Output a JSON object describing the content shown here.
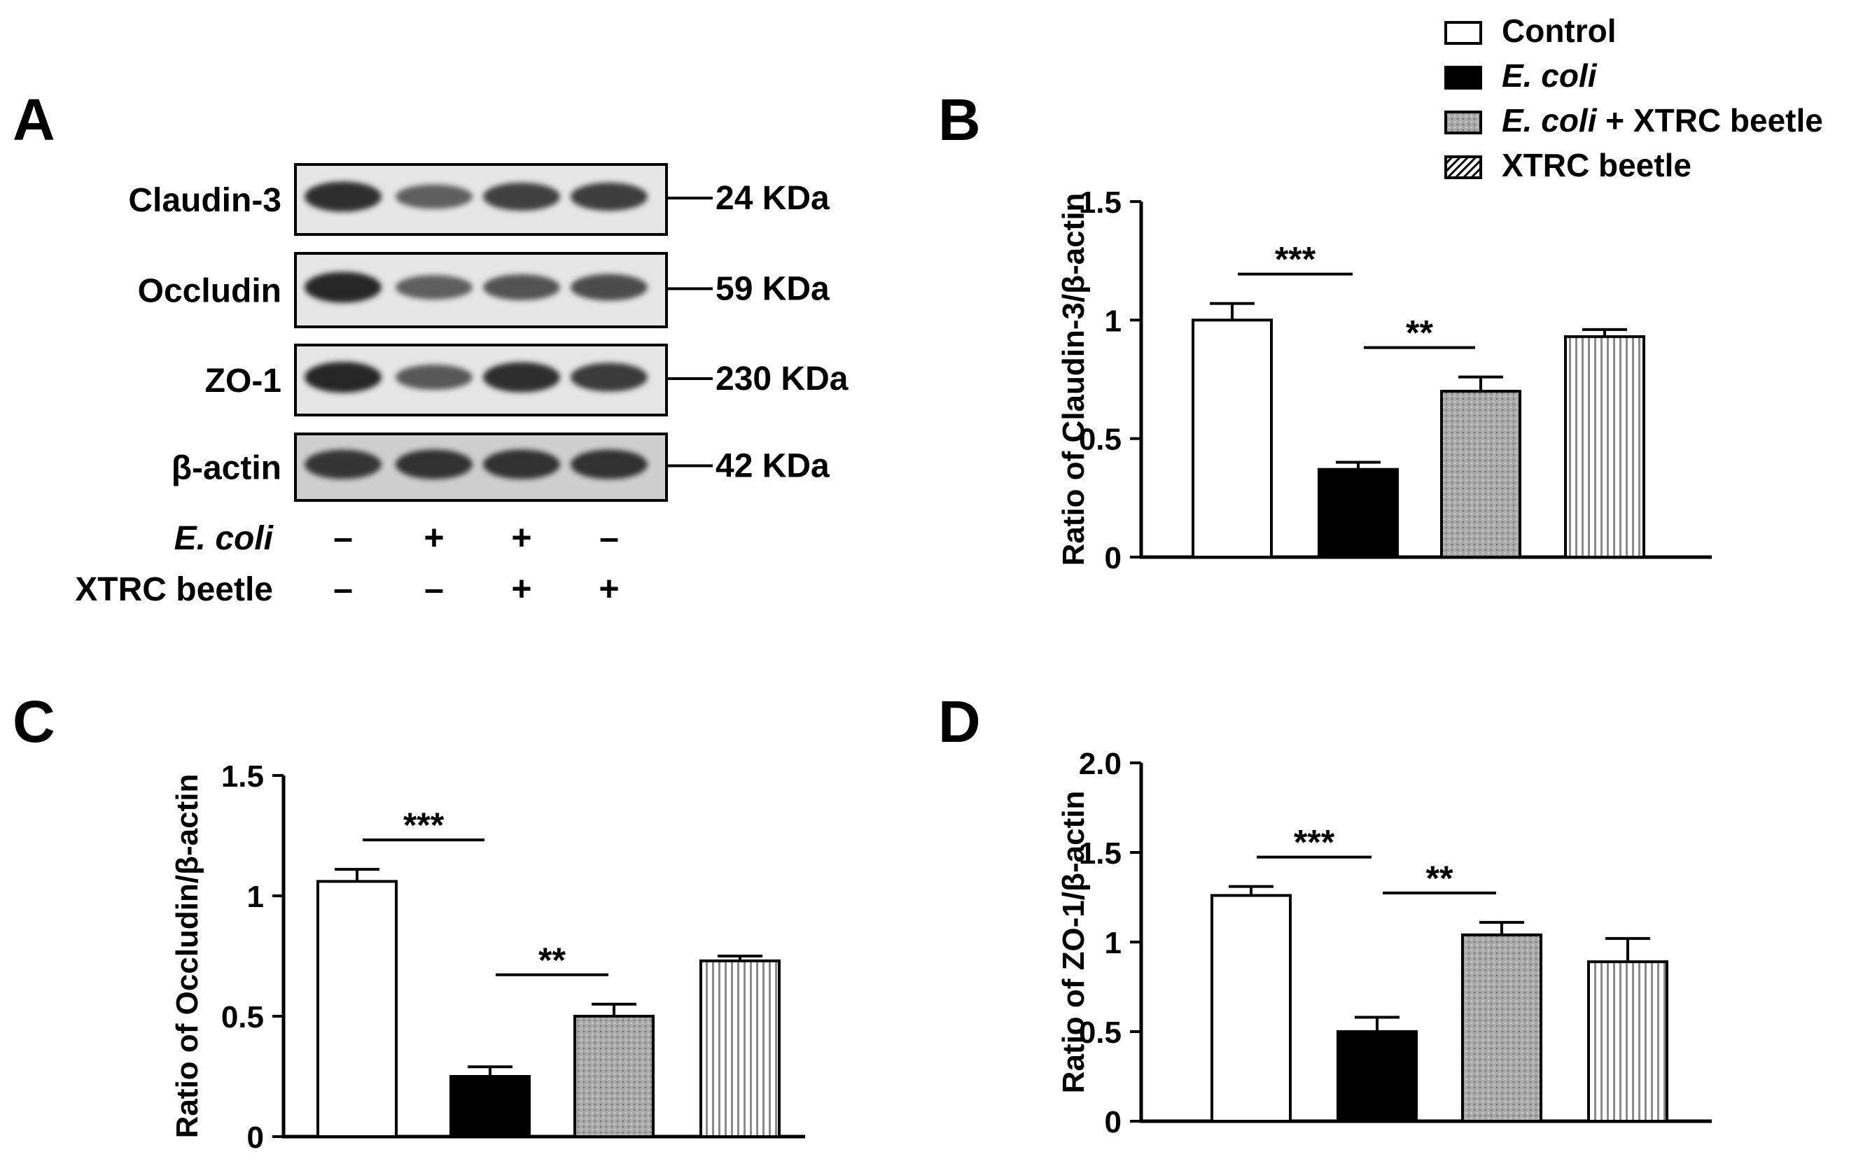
{
  "panel_labels": {
    "a": "A",
    "b": "B",
    "c": "C",
    "d": "D"
  },
  "legend": {
    "items": [
      {
        "label_main": "Control",
        "label_suffix": "",
        "italic": false,
        "pattern": "empty"
      },
      {
        "label_main": "E. coli",
        "label_suffix": "",
        "italic": true,
        "pattern": "solid"
      },
      {
        "label_main": "E. coli",
        "label_suffix": " + XTRC beetle",
        "italic": true,
        "pattern": "dots"
      },
      {
        "label_main": "XTRC beetle",
        "label_suffix": "",
        "italic": false,
        "pattern": "stripes"
      }
    ]
  },
  "blot": {
    "proteins": [
      {
        "name": "Claudin-3",
        "size": "24 KDa"
      },
      {
        "name": "Occludin",
        "size": "59 KDa"
      },
      {
        "name": "ZO-1",
        "size": "230 KDa"
      },
      {
        "name": "β-actin",
        "size": "42 KDa"
      }
    ],
    "band_intensity": [
      [
        0.95,
        0.55,
        0.8,
        0.82
      ],
      [
        1.0,
        0.55,
        0.65,
        0.7
      ],
      [
        1.0,
        0.6,
        0.95,
        0.85
      ],
      [
        0.9,
        0.92,
        0.92,
        0.92
      ]
    ],
    "treatments": [
      {
        "label": "E. coli",
        "italic": true,
        "signs": [
          "–",
          "+",
          "+",
          "–"
        ]
      },
      {
        "label": "XTRC beetle",
        "italic": false,
        "signs": [
          "–",
          "–",
          "+",
          "+"
        ]
      }
    ]
  },
  "colors": {
    "control": "#ffffff",
    "ecoli": "#000000",
    "combo": "#a8a8a8",
    "xtrc": "#ffffff",
    "axis": "#000000"
  },
  "chart_data": [
    {
      "panel": "B",
      "type": "bar",
      "categories": [
        "Control",
        "E. coli",
        "E. coli + XTRC beetle",
        "XTRC beetle"
      ],
      "values": [
        1.0,
        0.37,
        0.7,
        0.93
      ],
      "errors": [
        0.07,
        0.03,
        0.06,
        0.03
      ],
      "ylabel": "Ratio of Claudin-3/β-actin",
      "ylim": [
        0,
        1.5
      ],
      "yticks": [
        "0",
        "0.5",
        "1",
        "1.5"
      ],
      "significance": [
        {
          "from": 0,
          "to": 1,
          "label": "***"
        },
        {
          "from": 1,
          "to": 2,
          "label": "**"
        }
      ]
    },
    {
      "panel": "C",
      "type": "bar",
      "categories": [
        "Control",
        "E. coli",
        "E. coli + XTRC beetle",
        "XTRC beetle"
      ],
      "values": [
        1.06,
        0.25,
        0.5,
        0.73
      ],
      "errors": [
        0.05,
        0.04,
        0.05,
        0.02
      ],
      "ylabel": "Ratio of Occludin/β-actin",
      "ylim": [
        0,
        1.5
      ],
      "yticks": [
        "0",
        "0.5",
        "1",
        "1.5"
      ],
      "significance": [
        {
          "from": 0,
          "to": 1,
          "label": "***"
        },
        {
          "from": 1,
          "to": 2,
          "label": "**"
        }
      ]
    },
    {
      "panel": "D",
      "type": "bar",
      "categories": [
        "Control",
        "E. coli",
        "E. coli + XTRC beetle",
        "XTRC beetle"
      ],
      "values": [
        1.26,
        0.5,
        1.04,
        0.89
      ],
      "errors": [
        0.05,
        0.08,
        0.07,
        0.13
      ],
      "ylabel": "Ratio of ZO-1/β-actin",
      "ylim": [
        0,
        2.0
      ],
      "yticks": [
        "0",
        "0.5",
        "1",
        "1.5",
        "2.0"
      ],
      "significance": [
        {
          "from": 0,
          "to": 1,
          "label": "***"
        },
        {
          "from": 1,
          "to": 2,
          "label": "**"
        }
      ]
    }
  ]
}
